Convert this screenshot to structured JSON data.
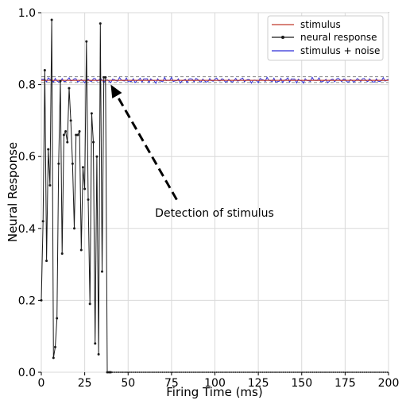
{
  "chart_data": {
    "type": "line",
    "xlabel": "Firing Time (ms)",
    "ylabel": "Neural Response",
    "xlim": [
      0,
      200
    ],
    "ylim": [
      0.0,
      1.0
    ],
    "xticks": [
      0,
      25,
      50,
      75,
      100,
      125,
      150,
      175,
      200
    ],
    "xtick_labels": [
      "0",
      "25",
      "50",
      "75",
      "100",
      "125",
      "150",
      "175",
      "200"
    ],
    "yticks": [
      0.0,
      0.2,
      0.4,
      0.6,
      0.8,
      1.0
    ],
    "ytick_labels": [
      "0.0",
      "0.2",
      "0.4",
      "0.6",
      "0.8",
      "1.0"
    ],
    "grid": true,
    "legend_position": "top-right",
    "threshold_band": {
      "lower": 0.806,
      "upper": 0.822,
      "style": "dashed",
      "color": "#888888"
    },
    "series": [
      {
        "name": "stimulus",
        "color": "#c0392b",
        "style": "line",
        "x": [
          0,
          200
        ],
        "y": [
          0.812,
          0.812
        ]
      },
      {
        "name": "neural response",
        "color": "#1a1a1a",
        "style": "line-with-markers",
        "x": [
          0,
          1,
          2,
          3,
          4,
          5,
          6,
          7,
          8,
          9,
          10,
          11,
          12,
          13,
          14,
          15,
          16,
          17,
          18,
          19,
          20,
          21,
          22,
          23,
          24,
          25,
          26,
          27,
          28,
          29,
          30,
          31,
          32,
          33,
          34,
          35,
          36,
          37,
          38,
          39,
          40,
          200
        ],
        "y": [
          0.2,
          0.42,
          0.84,
          0.31,
          0.62,
          0.52,
          0.98,
          0.04,
          0.07,
          0.15,
          0.58,
          0.81,
          0.33,
          0.66,
          0.67,
          0.64,
          0.79,
          0.7,
          0.58,
          0.4,
          0.66,
          0.66,
          0.67,
          0.34,
          0.57,
          0.51,
          0.92,
          0.48,
          0.19,
          0.72,
          0.64,
          0.08,
          0.6,
          0.05,
          0.97,
          0.28,
          0.82,
          0.82,
          0.0,
          0.0,
          0.0,
          0.0
        ]
      },
      {
        "name": "stimulus + noise",
        "color": "#2c2cd6",
        "style": "line",
        "noise_center": 0.812,
        "noise_amplitude": 0.008
      }
    ],
    "annotations": [
      {
        "text": "Detection of stimulus",
        "arrow_from": [
          78,
          0.48
        ],
        "arrow_to": [
          40,
          0.8
        ]
      }
    ]
  }
}
